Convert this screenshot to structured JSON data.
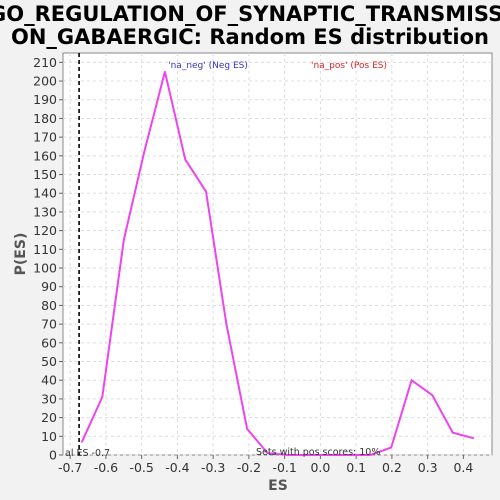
{
  "chart_data": {
    "type": "line",
    "title_line1": "GO_REGULATION_OF_SYNAPTIC_TRANSMISSI",
    "title_line2": "ON_GABAERGIC: Random ES distribution",
    "xlabel": "ES",
    "ylabel": "P(ES)",
    "xlim": [
      -0.72,
      0.48
    ],
    "ylim": [
      0,
      215
    ],
    "x_ticks": [
      -0.7,
      -0.6,
      -0.5,
      -0.4,
      -0.3,
      -0.2,
      -0.1,
      0.0,
      0.1,
      0.2,
      0.3,
      0.4
    ],
    "x_tick_labels": [
      "-0.7",
      "-0.6",
      "-0.5",
      "-0.4",
      "-0.3",
      "-0.2",
      "-0.1",
      "0.0",
      "0.1",
      "0.2",
      "0.3",
      "0.4"
    ],
    "y_ticks": [
      0,
      10,
      20,
      30,
      40,
      50,
      60,
      70,
      80,
      90,
      100,
      110,
      120,
      130,
      140,
      150,
      160,
      170,
      180,
      190,
      200,
      210
    ],
    "y_tick_labels": [
      "0",
      "10",
      "20",
      "30",
      "40",
      "50",
      "60",
      "70",
      "80",
      "90",
      "100",
      "110",
      "120",
      "130",
      "140",
      "150",
      "160",
      "170",
      "180",
      "190",
      "200",
      "210"
    ],
    "grid": true,
    "series": [
      {
        "color": "#ee44ee",
        "x": [
          -0.667,
          -0.61,
          -0.55,
          -0.493,
          -0.435,
          -0.378,
          -0.32,
          -0.263,
          -0.205,
          -0.148,
          -0.09,
          -0.033,
          0.025,
          0.083,
          0.14,
          0.198,
          0.255,
          0.313,
          0.37,
          0.428
        ],
        "y": [
          7,
          31,
          115,
          162,
          205,
          158,
          141,
          70,
          14,
          1,
          0,
          0,
          0,
          0,
          0,
          4,
          40,
          32,
          12,
          9
        ]
      }
    ],
    "actual_es": -0.675,
    "annotations": {
      "neg_legend": "'na_neg' (Neg ES)",
      "pos_legend": "'na_pos' (Pos ES)",
      "actual_es_label": "al ES -0.7",
      "pos_scores_label": "Sets with pos scores: 10%"
    },
    "colors": {
      "neg_legend": "#3333cc",
      "pos_legend": "#dd2222",
      "line": "#ee44ee"
    }
  }
}
